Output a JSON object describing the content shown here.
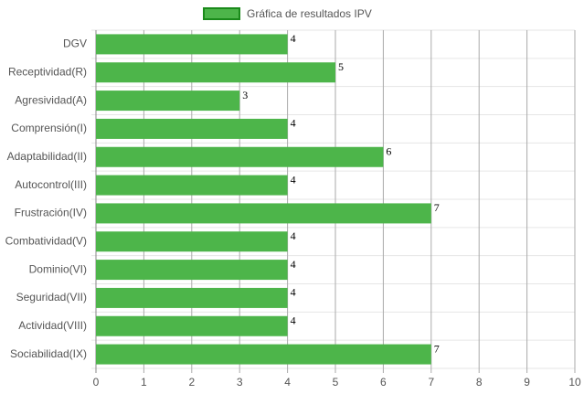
{
  "chart_data": {
    "type": "bar",
    "orientation": "horizontal",
    "series": [
      {
        "name": "Gráfica de resultados IPV",
        "color": "#4db54a",
        "border_color": "#1a8a1a",
        "values": [
          4,
          5,
          3,
          4,
          6,
          4,
          7,
          4,
          4,
          4,
          4,
          7
        ]
      }
    ],
    "categories": [
      "DGV",
      "Receptividad(R)",
      "Agresividad(A)",
      "Comprensión(I)",
      "Adaptabilidad(II)",
      "Autocontrol(III)",
      "Frustración(IV)",
      "Combatividad(V)",
      "Dominio(VI)",
      "Seguridad(VII)",
      "Actividad(VIII)",
      "Sociabilidad(IX)"
    ],
    "xlim": [
      0,
      10
    ],
    "xticks": [
      0,
      1,
      2,
      3,
      4,
      5,
      6,
      7,
      8,
      9,
      10
    ],
    "grid": true,
    "legend": "top"
  }
}
